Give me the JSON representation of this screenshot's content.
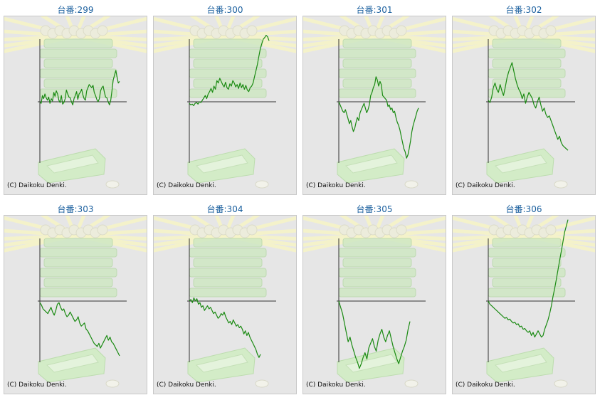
{
  "copyright": "(C) Daikoku Denki.",
  "chart_data": [
    {
      "type": "line",
      "title": "台番:299",
      "baseline": 0,
      "values": [
        0,
        -2,
        8,
        4,
        10,
        5,
        2,
        6,
        -2,
        4,
        1,
        12,
        7,
        14,
        10,
        2,
        -1,
        8,
        -3,
        -1,
        4,
        15,
        10,
        6,
        5,
        0,
        -4,
        4,
        8,
        13,
        3,
        10,
        12,
        16,
        9,
        4,
        2,
        14,
        18,
        22,
        20,
        18,
        21,
        12,
        8,
        3,
        0,
        4,
        14,
        18,
        20,
        12,
        6,
        5,
        0,
        -4,
        2,
        14,
        28,
        34,
        40,
        32,
        24,
        26
      ]
    },
    {
      "type": "line",
      "title": "台番:300",
      "baseline": 0,
      "values": [
        -2,
        -4,
        -3,
        -5,
        -2,
        -1,
        -3,
        0,
        -1,
        2,
        5,
        8,
        4,
        10,
        13,
        17,
        12,
        20,
        16,
        27,
        24,
        30,
        26,
        22,
        19,
        25,
        18,
        16,
        23,
        20,
        27,
        24,
        19,
        22,
        17,
        24,
        18,
        22,
        16,
        21,
        15,
        13,
        18,
        20,
        24,
        32,
        40,
        48,
        58,
        68,
        74,
        80,
        82,
        85,
        83,
        78
      ]
    },
    {
      "type": "line",
      "title": "台番:301",
      "baseline": 0,
      "values": [
        0,
        -4,
        -8,
        -12,
        -14,
        -10,
        -16,
        -22,
        -28,
        -24,
        -32,
        -38,
        -34,
        -26,
        -20,
        -24,
        -14,
        -10,
        -6,
        -2,
        -8,
        -14,
        -10,
        -4,
        8,
        12,
        18,
        22,
        32,
        28,
        20,
        26,
        22,
        8,
        6,
        4,
        2,
        -6,
        -4,
        -10,
        -8,
        -14,
        -12,
        -20,
        -26,
        -30,
        -36,
        -44,
        -52,
        -60,
        -64,
        -72,
        -68,
        -60,
        -50,
        -38,
        -30,
        -24,
        -18,
        -12,
        -8
      ]
    },
    {
      "type": "line",
      "title": "台番:302",
      "baseline": 0,
      "values": [
        2,
        -1,
        6,
        18,
        24,
        16,
        12,
        22,
        14,
        8,
        18,
        30,
        38,
        44,
        50,
        40,
        30,
        22,
        16,
        12,
        4,
        10,
        -2,
        6,
        12,
        8,
        4,
        -4,
        -8,
        0,
        6,
        -4,
        -12,
        -8,
        -16,
        -20,
        -18,
        -24,
        -30,
        -36,
        -42,
        -48,
        -44,
        -52,
        -56,
        -58,
        -60,
        -62
      ]
    },
    {
      "type": "line",
      "title": "台番:303",
      "baseline": 0,
      "values": [
        -2,
        -5,
        -10,
        -12,
        -14,
        -16,
        -12,
        -8,
        -14,
        -18,
        -12,
        -4,
        -2,
        -8,
        -12,
        -10,
        -16,
        -20,
        -18,
        -14,
        -18,
        -22,
        -26,
        -24,
        -20,
        -28,
        -32,
        -30,
        -28,
        -36,
        -38,
        -42,
        -46,
        -50,
        -54,
        -56,
        -58,
        -54,
        -60,
        -56,
        -52,
        -48,
        -44,
        -50,
        -46,
        -52,
        -54,
        -58,
        -62,
        -66,
        -70
      ]
    },
    {
      "type": "line",
      "title": "台番:304",
      "baseline": 0,
      "values": [
        0,
        2,
        -2,
        4,
        0,
        3,
        -4,
        -2,
        -8,
        -6,
        -12,
        -9,
        -6,
        -10,
        -8,
        -12,
        -16,
        -14,
        -18,
        -22,
        -20,
        -16,
        -18,
        -14,
        -20,
        -24,
        -28,
        -26,
        -30,
        -24,
        -28,
        -32,
        -30,
        -34,
        -32,
        -36,
        -42,
        -38,
        -44,
        -40,
        -46,
        -50,
        -54,
        -58,
        -62,
        -68,
        -72,
        -68
      ]
    },
    {
      "type": "line",
      "title": "台番:305",
      "baseline": 0,
      "values": [
        0,
        -8,
        -16,
        -28,
        -40,
        -52,
        -46,
        -56,
        -64,
        -72,
        -78,
        -86,
        -80,
        -72,
        -66,
        -74,
        -60,
        -54,
        -48,
        -58,
        -64,
        -50,
        -42,
        -36,
        -46,
        -52,
        -44,
        -38,
        -48,
        -58,
        -66,
        -74,
        -80,
        -72,
        -64,
        -58,
        -50,
        -36,
        -26
      ]
    },
    {
      "type": "line",
      "title": "台番:306",
      "baseline": 0,
      "values": [
        0,
        -4,
        -6,
        -8,
        -10,
        -12,
        -14,
        -16,
        -18,
        -20,
        -22,
        -21,
        -24,
        -23,
        -26,
        -28,
        -27,
        -30,
        -29,
        -33,
        -32,
        -36,
        -35,
        -38,
        -40,
        -38,
        -44,
        -40,
        -46,
        -42,
        -38,
        -42,
        -46,
        -44,
        -36,
        -30,
        -24,
        -16,
        -6,
        6,
        16,
        28,
        40,
        52,
        64,
        76,
        88,
        96,
        104
      ]
    }
  ]
}
